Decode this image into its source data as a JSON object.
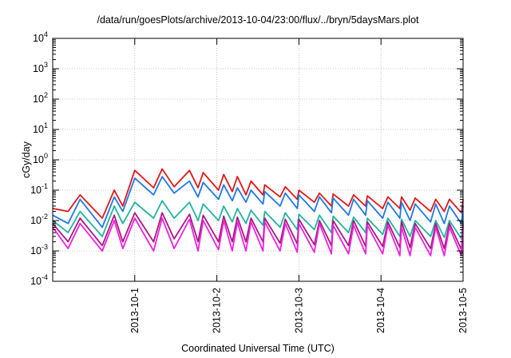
{
  "chart_data": {
    "type": "line",
    "title": "/data/run/goesPlots/archive/2013-10-04/23:00/flux/../bryn/5daysMars.plot",
    "xlabel": "Coordinated Universal Time (UTC)",
    "ylabel": "cGy/day",
    "yscale": "log",
    "ylim": [
      0.0001,
      10000
    ],
    "xlim": [
      "2013-09-30 00:00",
      "2013-10-05 00:00"
    ],
    "x_tick_labels": [
      "2013-10-1",
      "2013-10-2",
      "2013-10-3",
      "2013-10-4",
      "2013-10-5"
    ],
    "y_tick_labels": [
      {
        "base": "10",
        "exp": "-4"
      },
      {
        "base": "10",
        "exp": "-3"
      },
      {
        "base": "10",
        "exp": "-2"
      },
      {
        "base": "10",
        "exp": "-1"
      },
      {
        "base": "10",
        "exp": "0"
      },
      {
        "base": "10",
        "exp": "1"
      },
      {
        "base": "10",
        "exp": "2"
      },
      {
        "base": "10",
        "exp": "3"
      },
      {
        "base": "10",
        "exp": "4"
      }
    ],
    "grid": true,
    "legend": "none",
    "x_hours": [
      0,
      4.5,
      8,
      14.5,
      18,
      20.5,
      24,
      29.5,
      32,
      35.5,
      40,
      42.5,
      44,
      48.5,
      50,
      52.5,
      54,
      56.5,
      58,
      61.5,
      62,
      66.5,
      68,
      71.5,
      72,
      76.5,
      78,
      81.5,
      82,
      86.5,
      88,
      91.5,
      92,
      96.5,
      98,
      101.5,
      102,
      104.5,
      106,
      110.5,
      112,
      114.5,
      116,
      119.5,
      120
    ],
    "series": [
      {
        "color": "#e01818",
        "values": [
          0.025,
          0.02,
          0.07,
          0.012,
          0.1,
          0.03,
          0.45,
          0.12,
          0.5,
          0.13,
          0.45,
          0.12,
          0.38,
          0.1,
          0.33,
          0.09,
          0.28,
          0.07,
          0.2,
          0.07,
          0.15,
          0.06,
          0.13,
          0.05,
          0.1,
          0.04,
          0.08,
          0.03,
          0.075,
          0.03,
          0.07,
          0.03,
          0.065,
          0.025,
          0.06,
          0.025,
          0.06,
          0.022,
          0.055,
          0.02,
          0.05,
          0.02,
          0.05,
          0.018,
          0.05
        ]
      },
      {
        "color": "#1e78e8",
        "values": [
          0.015,
          0.008,
          0.05,
          0.006,
          0.06,
          0.02,
          0.25,
          0.07,
          0.28,
          0.08,
          0.2,
          0.06,
          0.18,
          0.05,
          0.15,
          0.045,
          0.12,
          0.04,
          0.1,
          0.035,
          0.09,
          0.03,
          0.08,
          0.025,
          0.07,
          0.02,
          0.06,
          0.018,
          0.055,
          0.015,
          0.05,
          0.015,
          0.045,
          0.012,
          0.04,
          0.012,
          0.04,
          0.01,
          0.035,
          0.009,
          0.035,
          0.008,
          0.03,
          0.008,
          0.03
        ]
      },
      {
        "color": "#20b4a0",
        "values": [
          0.01,
          0.004,
          0.02,
          0.003,
          0.03,
          0.008,
          0.04,
          0.012,
          0.045,
          0.012,
          0.04,
          0.01,
          0.035,
          0.01,
          0.03,
          0.009,
          0.025,
          0.008,
          0.022,
          0.007,
          0.02,
          0.006,
          0.018,
          0.005,
          0.016,
          0.005,
          0.015,
          0.004,
          0.014,
          0.004,
          0.013,
          0.004,
          0.012,
          0.0035,
          0.012,
          0.003,
          0.011,
          0.003,
          0.01,
          0.003,
          0.01,
          0.0028,
          0.01,
          0.0025,
          0.01
        ]
      },
      {
        "color": "#a81880",
        "values": [
          0.008,
          0.002,
          0.012,
          0.0015,
          0.015,
          0.002,
          0.018,
          0.002,
          0.018,
          0.0025,
          0.016,
          0.002,
          0.015,
          0.002,
          0.014,
          0.002,
          0.013,
          0.002,
          0.012,
          0.002,
          0.012,
          0.0018,
          0.011,
          0.0017,
          0.011,
          0.0016,
          0.01,
          0.0015,
          0.01,
          0.0015,
          0.01,
          0.0014,
          0.009,
          0.0014,
          0.009,
          0.0013,
          0.009,
          0.0013,
          0.008,
          0.0012,
          0.008,
          0.0012,
          0.008,
          0.0011,
          0.008
        ]
      },
      {
        "color": "#f020e0",
        "values": [
          0.006,
          0.0012,
          0.008,
          0.001,
          0.01,
          0.0012,
          0.012,
          0.001,
          0.012,
          0.0012,
          0.011,
          0.001,
          0.01,
          0.0011,
          0.01,
          0.001,
          0.009,
          0.001,
          0.009,
          0.001,
          0.009,
          0.001,
          0.008,
          0.0009,
          0.008,
          0.0009,
          0.008,
          0.0008,
          0.007,
          0.0008,
          0.007,
          0.0008,
          0.007,
          0.0008,
          0.007,
          0.0007,
          0.006,
          0.0007,
          0.006,
          0.0007,
          0.006,
          0.0007,
          0.006,
          0.0007,
          0.006
        ]
      }
    ]
  }
}
